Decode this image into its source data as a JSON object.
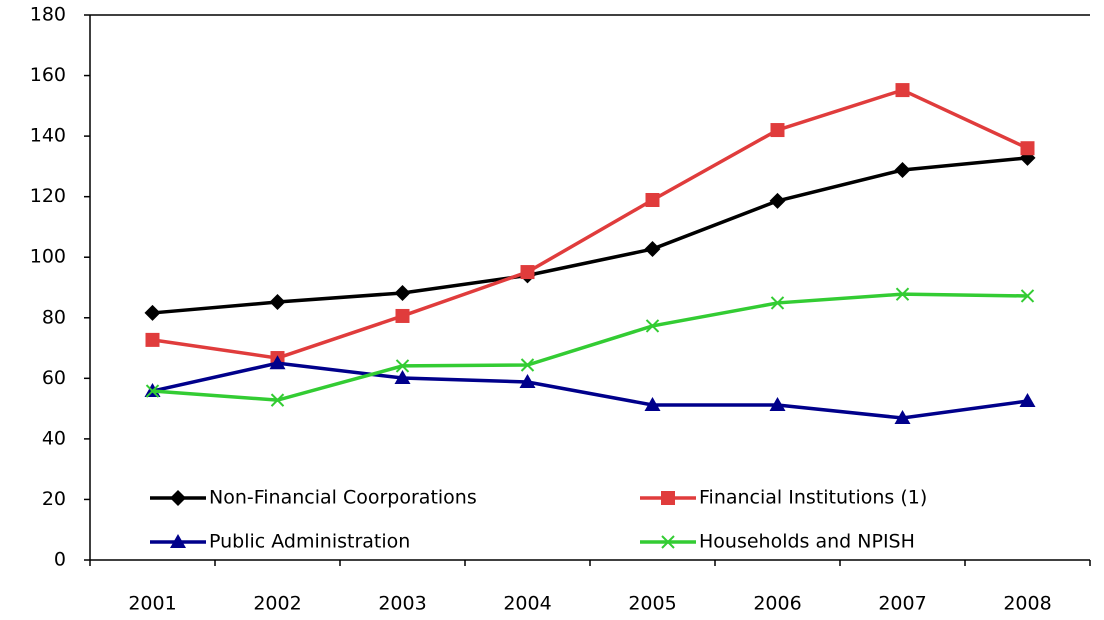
{
  "chart_data": {
    "type": "line",
    "categories": [
      "2001",
      "2002",
      "2003",
      "2004",
      "2005",
      "2006",
      "2007",
      "2008"
    ],
    "series": [
      {
        "name": "Non-Financial Coorporations",
        "color": "#000000",
        "marker": "diamond",
        "values": [
          81.6,
          85.2,
          88.2,
          94.0,
          102.7,
          118.6,
          128.8,
          132.8
        ]
      },
      {
        "name": "Financial Institutions (1)",
        "color": "#e03c3c",
        "marker": "square",
        "values": [
          72.7,
          66.7,
          80.6,
          95.1,
          118.9,
          142.0,
          155.2,
          136.0
        ]
      },
      {
        "name": "Public Administration",
        "color": "#00008b",
        "marker": "triangle",
        "values": [
          55.8,
          65.0,
          60.1,
          58.8,
          51.2,
          51.2,
          46.9,
          52.5
        ]
      },
      {
        "name": "Households and NPISH",
        "color": "#33cc33",
        "marker": "x",
        "values": [
          55.8,
          52.8,
          64.1,
          64.4,
          77.3,
          84.9,
          87.8,
          87.2
        ]
      }
    ],
    "ylim": [
      0,
      180
    ],
    "yticks": [
      0,
      20,
      40,
      60,
      80,
      100,
      120,
      140,
      160,
      180
    ],
    "grid": false
  }
}
